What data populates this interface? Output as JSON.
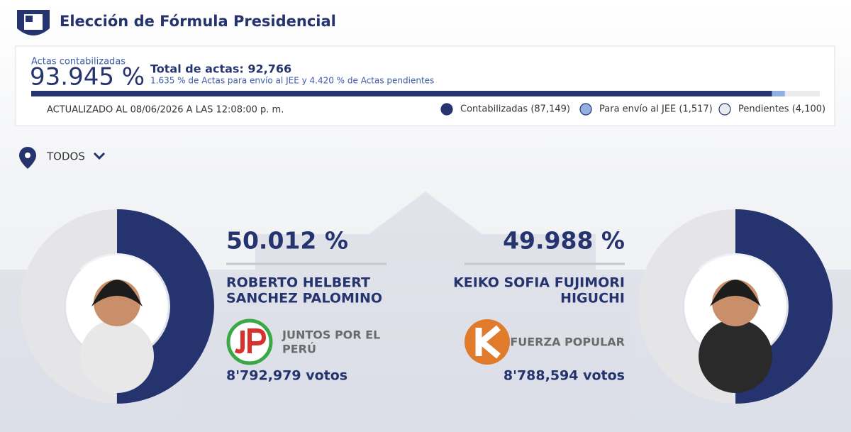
{
  "header": {
    "title": "Elección de Fórmula Presidencial"
  },
  "summary": {
    "label": "Actas contabilizadas",
    "percent": "93.945 %",
    "total": "Total de actas: 92,766",
    "note": "1.635 % de Actas para envío al JEE y 4.420 % de Actas pendientes",
    "updated": "ACTUALIZADO AL 08/06/2026 A LAS 12:08:00 p. m.",
    "segments": [
      {
        "label": "Contabilizadas (87,149)",
        "value": 87149,
        "color": "#25346f"
      },
      {
        "label": "Para envío al JEE (1,517)",
        "value": 1517,
        "color": "#8fb0e0"
      },
      {
        "label": "Pendientes (4,100)",
        "value": 4100,
        "color": "#ebebee"
      }
    ]
  },
  "filter": {
    "label": "TODOS"
  },
  "candidates": [
    {
      "percent": {
        "value": 50.012,
        "label": "50.012 %"
      },
      "name": [
        "ROBERTO HELBERT",
        "SANCHEZ PALOMINO"
      ],
      "party": [
        "JUNTOS POR EL",
        "PERÚ"
      ],
      "votes": "8'792,979 votos"
    },
    {
      "percent": {
        "value": 49.988,
        "label": "49.988 %"
      },
      "name": [
        "KEIKO SOFIA FUJIMORI",
        "HIGUCHI"
      ],
      "party": [
        "FUERZA POPULAR"
      ],
      "votes": "8'788,594 votos"
    }
  ]
}
